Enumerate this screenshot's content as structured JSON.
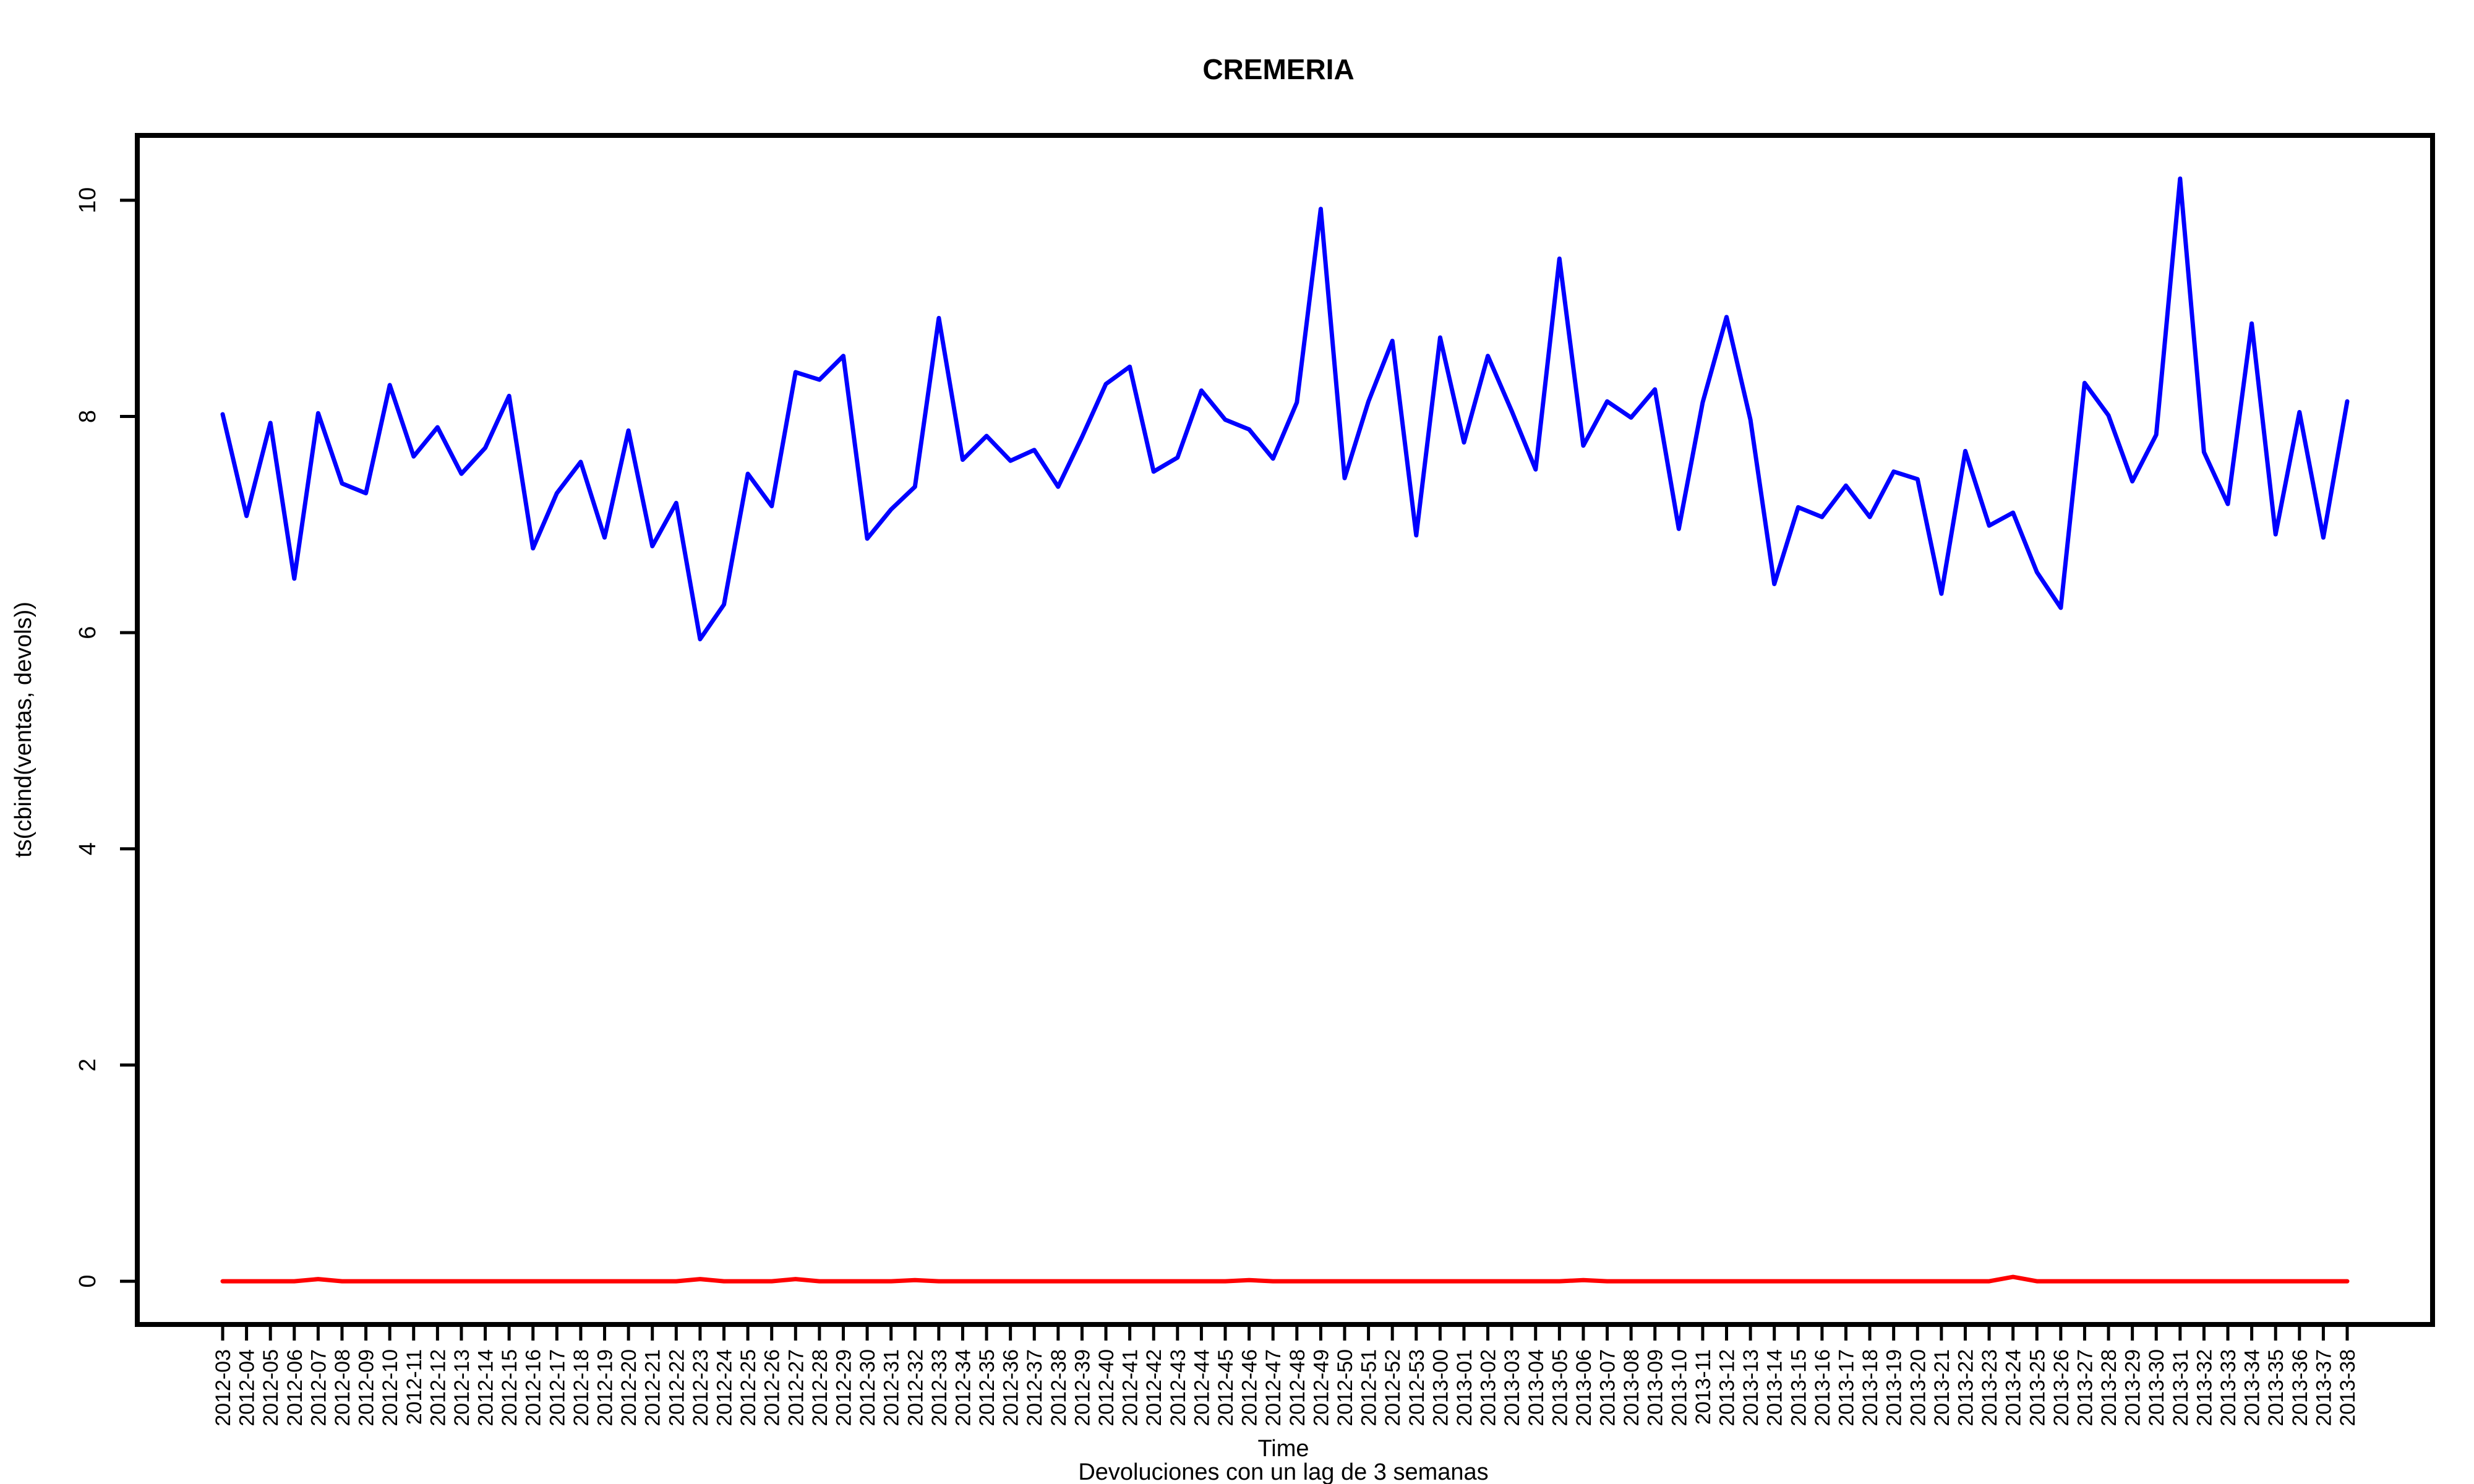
{
  "chart_data": {
    "type": "line",
    "title": "CREMERIA",
    "xlabel": "Time",
    "ylabel": "ts(cbind(ventas, devols))",
    "subtitle": "Devoluciones con un lag de 3 semanas",
    "ylim": [
      -0.4,
      10.6
    ],
    "yticks": [
      0,
      2,
      4,
      6,
      8,
      10
    ],
    "grid": false,
    "categories": [
      "2012-03",
      "2012-04",
      "2012-05",
      "2012-06",
      "2012-07",
      "2012-08",
      "2012-09",
      "2012-10",
      "2012-11",
      "2012-12",
      "2012-13",
      "2012-14",
      "2012-15",
      "2012-16",
      "2012-17",
      "2012-18",
      "2012-19",
      "2012-20",
      "2012-21",
      "2012-22",
      "2012-23",
      "2012-24",
      "2012-25",
      "2012-26",
      "2012-27",
      "2012-28",
      "2012-29",
      "2012-30",
      "2012-31",
      "2012-32",
      "2012-33",
      "2012-34",
      "2012-35",
      "2012-36",
      "2012-37",
      "2012-38",
      "2012-39",
      "2012-40",
      "2012-41",
      "2012-42",
      "2012-43",
      "2012-44",
      "2012-45",
      "2012-46",
      "2012-47",
      "2012-48",
      "2012-49",
      "2012-50",
      "2012-51",
      "2012-52",
      "2012-53",
      "2013-00",
      "2013-01",
      "2013-02",
      "2013-03",
      "2013-04",
      "2013-05",
      "2013-06",
      "2013-07",
      "2013-08",
      "2013-09",
      "2013-10",
      "2013-11",
      "2013-12",
      "2013-13",
      "2013-14",
      "2013-15",
      "2013-16",
      "2013-17",
      "2013-18",
      "2013-19",
      "2013-20",
      "2013-21",
      "2013-22",
      "2013-23",
      "2013-24",
      "2013-25",
      "2013-26",
      "2013-27",
      "2013-28",
      "2013-29",
      "2013-30",
      "2013-31",
      "2013-32",
      "2013-33",
      "2013-34",
      "2013-35",
      "2013-36",
      "2013-37",
      "2013-38"
    ],
    "series": [
      {
        "color": "#0000ff",
        "values": [
          8.02,
          7.08,
          7.94,
          6.5,
          8.03,
          7.38,
          7.29,
          8.29,
          7.63,
          7.9,
          7.47,
          7.71,
          8.19,
          6.78,
          7.29,
          7.58,
          6.88,
          7.87,
          6.8,
          7.2,
          5.94,
          6.26,
          7.47,
          7.17,
          8.41,
          8.34,
          8.56,
          6.87,
          7.14,
          7.35,
          8.91,
          7.6,
          7.82,
          7.59,
          7.69,
          7.35,
          7.81,
          8.3,
          8.46,
          7.49,
          7.62,
          8.24,
          7.97,
          7.88,
          7.61,
          8.13,
          9.92,
          7.43,
          8.14,
          8.7,
          6.9,
          8.73,
          7.76,
          8.56,
          8.05,
          7.51,
          9.46,
          7.73,
          8.14,
          7.99,
          8.25,
          6.96,
          8.13,
          8.92,
          7.97,
          6.45,
          7.16,
          7.07,
          7.36,
          7.07,
          7.49,
          7.42,
          6.36,
          7.68,
          6.99,
          7.11,
          6.56,
          6.23,
          8.31,
          8.01,
          7.4,
          7.83,
          10.2,
          7.67,
          7.19,
          8.86,
          6.91,
          8.04,
          6.88,
          8.14
        ]
      },
      {
        "color": "#ff0000",
        "values": [
          0,
          0,
          0,
          0,
          0.02,
          0,
          0,
          0,
          0,
          0,
          0,
          0,
          0,
          0,
          0,
          0,
          0,
          0,
          0,
          0,
          0.02,
          0,
          0,
          0,
          0.02,
          0,
          0,
          0,
          0,
          0.01,
          0,
          0,
          0,
          0,
          0,
          0,
          0,
          0,
          0,
          0,
          0,
          0,
          0,
          0.01,
          0,
          0,
          0,
          0,
          0,
          0,
          0,
          0,
          0,
          0,
          0,
          0,
          0,
          0.01,
          0,
          0,
          0,
          0,
          0,
          0,
          0,
          0,
          0,
          0,
          0,
          0,
          0,
          0,
          0,
          0,
          0,
          0.04,
          0,
          0,
          0,
          0,
          0,
          0,
          0,
          0,
          0,
          0,
          0,
          0,
          0,
          0
        ]
      }
    ]
  }
}
